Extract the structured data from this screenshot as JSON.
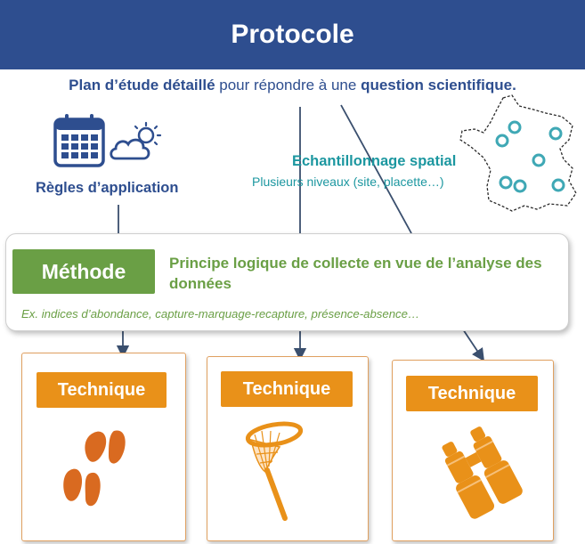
{
  "header": {
    "title": "Protocole"
  },
  "subtitle": {
    "part1": "Plan d’étude détaillé",
    "part2": " pour répondre à une ",
    "part3": "question scientifique."
  },
  "regles": {
    "label": "Règles d’application"
  },
  "echantillonnage": {
    "title": "Echantillonnage spatial",
    "subtitle": "Plusieurs niveaux (site, placette…)"
  },
  "methode": {
    "label": "Méthode",
    "description": "Principe logique de collecte en vue de l’analyse des données",
    "examples": "Ex. indices d’abondance, capture-marquage-recapture, présence-absence…"
  },
  "techniques": [
    {
      "label": "Technique",
      "icon": "hoofprint-icon"
    },
    {
      "label": "Technique",
      "icon": "butterfly-net-icon"
    },
    {
      "label": "Technique",
      "icon": "binoculars-icon"
    }
  ],
  "colors": {
    "header_bg": "#2E4E8F",
    "navy_text": "#2E4E8F",
    "teal": "#1C97A0",
    "method_green": "#6A9F45",
    "technique_orange": "#E99119",
    "icon_orange": "#D96A20"
  }
}
